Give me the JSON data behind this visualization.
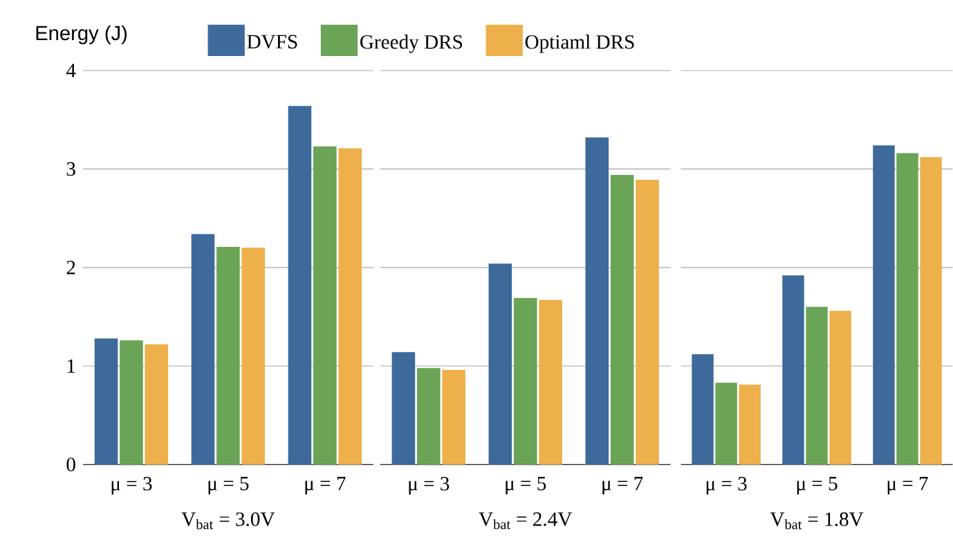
{
  "chart_data": [
    {
      "type": "bar",
      "ylabel": "Energy (J)",
      "xlabel": "V$_{bat}$ = 3.0V",
      "categories": [
        "μ = 3",
        "μ = 5",
        "μ = 7"
      ],
      "ylim": [
        0,
        4
      ],
      "yticks": [
        0,
        1,
        2,
        3,
        4
      ],
      "grid": "y",
      "legend": "top",
      "series": [
        {
          "name": "DVFS",
          "color": "#3d6a9b",
          "values": [
            1.28,
            2.34,
            3.64
          ]
        },
        {
          "name": "Greedy DRS",
          "color": "#6aa456",
          "values": [
            1.26,
            2.21,
            3.23
          ]
        },
        {
          "name": "Optiaml DRS",
          "color": "#edb04a",
          "values": [
            1.22,
            2.2,
            3.21
          ]
        }
      ]
    },
    {
      "type": "bar",
      "xlabel": "V$_{bat}$ = 2.4V",
      "categories": [
        "μ = 3",
        "μ = 5",
        "μ = 7"
      ],
      "ylim": [
        0,
        4
      ],
      "yticks": [
        0,
        1,
        2,
        3,
        4
      ],
      "grid": "y",
      "tick_labels": "x",
      "series": [
        {
          "color": "#3d6a9b",
          "values": [
            1.14,
            2.04,
            3.32
          ]
        },
        {
          "color": "#6aa456",
          "values": [
            0.98,
            1.69,
            2.94
          ]
        },
        {
          "color": "#edb04a",
          "values": [
            0.96,
            1.67,
            2.89
          ]
        }
      ]
    },
    {
      "type": "bar",
      "xlabel": "V$_{bat}$ = 1.8V",
      "categories": [
        "μ = 3",
        "μ = 5",
        "μ = 7"
      ],
      "ylim": [
        0,
        4
      ],
      "yticks": [
        0,
        1,
        2,
        3,
        4
      ],
      "grid": "y",
      "tick_labels": "x",
      "series": [
        {
          "color": "#3d6a9b",
          "values": [
            1.12,
            1.92,
            3.24
          ]
        },
        {
          "color": "#6aa456",
          "values": [
            0.83,
            1.6,
            3.16
          ]
        },
        {
          "color": "#edb04a",
          "values": [
            0.81,
            1.56,
            3.12
          ]
        }
      ]
    }
  ]
}
